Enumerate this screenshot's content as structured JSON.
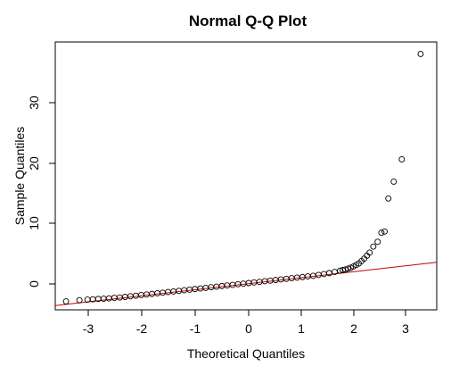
{
  "chart_data": {
    "type": "scatter",
    "title": "Normal Q-Q Plot",
    "xlabel": "Theoretical Quantiles",
    "ylabel": "Sample Quantiles",
    "xlim": [
      -3.5,
      3.6
    ],
    "ylim": [
      -4.5,
      40
    ],
    "x_ticks": [
      -3,
      -2,
      -1,
      0,
      1,
      2,
      3
    ],
    "y_ticks": [
      0,
      10,
      20,
      30
    ],
    "x_tick_labels": [
      "-3",
      "-2",
      "-1",
      "0",
      "1",
      "2",
      "3"
    ],
    "y_tick_labels": [
      "0",
      "10",
      "20",
      "30"
    ],
    "grid": false,
    "legend": "none",
    "point_color": "#000000",
    "reference_line": {
      "type": "qqline",
      "x": [
        -3.5,
        3.6
      ],
      "y": [
        -3.8,
        3.4
      ],
      "color": "#cc0000"
    },
    "points": {
      "x": [
        -3.3,
        -3.05,
        -2.9,
        -2.8,
        -2.7,
        -2.6,
        -2.5,
        -2.4,
        -2.3,
        -2.2,
        -2.1,
        -2.0,
        -1.9,
        -1.8,
        -1.7,
        -1.6,
        -1.5,
        -1.4,
        -1.3,
        -1.2,
        -1.1,
        -1.0,
        -0.9,
        -0.8,
        -0.7,
        -0.6,
        -0.5,
        -0.4,
        -0.3,
        -0.2,
        -0.1,
        0.0,
        0.1,
        0.2,
        0.3,
        0.4,
        0.5,
        0.6,
        0.7,
        0.8,
        0.9,
        1.0,
        1.1,
        1.2,
        1.3,
        1.4,
        1.5,
        1.6,
        1.7,
        1.8,
        1.85,
        1.9,
        1.95,
        2.0,
        2.05,
        2.1,
        2.15,
        2.2,
        2.25,
        2.3,
        2.35,
        2.42,
        2.5,
        2.57,
        2.63,
        2.7,
        2.8,
        2.95,
        3.3
      ],
      "y": [
        -3.1,
        -2.9,
        -2.8,
        -2.75,
        -2.7,
        -2.65,
        -2.6,
        -2.5,
        -2.45,
        -2.35,
        -2.25,
        -2.15,
        -2.05,
        -1.95,
        -1.85,
        -1.75,
        -1.65,
        -1.55,
        -1.45,
        -1.35,
        -1.25,
        -1.15,
        -1.05,
        -0.95,
        -0.85,
        -0.75,
        -0.65,
        -0.55,
        -0.45,
        -0.35,
        -0.25,
        -0.15,
        -0.05,
        0.05,
        0.15,
        0.25,
        0.35,
        0.45,
        0.55,
        0.65,
        0.75,
        0.85,
        0.95,
        1.05,
        1.15,
        1.3,
        1.45,
        1.6,
        1.8,
        2.0,
        2.1,
        2.2,
        2.35,
        2.5,
        2.7,
        2.95,
        3.2,
        3.6,
        4.0,
        4.5,
        5.0,
        6.0,
        6.8,
        8.3,
        8.5,
        14.0,
        16.8,
        20.5,
        38.0
      ]
    }
  }
}
